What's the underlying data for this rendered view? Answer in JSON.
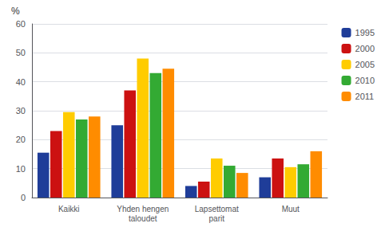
{
  "chart_data": {
    "type": "bar",
    "categories": [
      "Kaikki",
      "Yhden hengen\ntaloudet",
      "Lapsettomat\nparit",
      "Muut"
    ],
    "series": [
      {
        "name": "1995",
        "color": "#1f3d99",
        "values": [
          15.5,
          25,
          4,
          7
        ]
      },
      {
        "name": "2000",
        "color": "#cc1111",
        "values": [
          23,
          37,
          5.5,
          13.5
        ]
      },
      {
        "name": "2005",
        "color": "#ffcc00",
        "values": [
          29.5,
          48,
          13.5,
          10.5
        ]
      },
      {
        "name": "2010",
        "color": "#33aa33",
        "values": [
          27,
          43,
          11,
          11.5
        ]
      },
      {
        "name": "2011",
        "color": "#ff8c00",
        "values": [
          28,
          44.5,
          8.5,
          16
        ]
      }
    ],
    "ylim": [
      0,
      60
    ],
    "yticks": [
      0,
      10,
      20,
      30,
      40,
      50,
      60
    ],
    "annotation": "%",
    "grid": true,
    "legend": "right"
  }
}
